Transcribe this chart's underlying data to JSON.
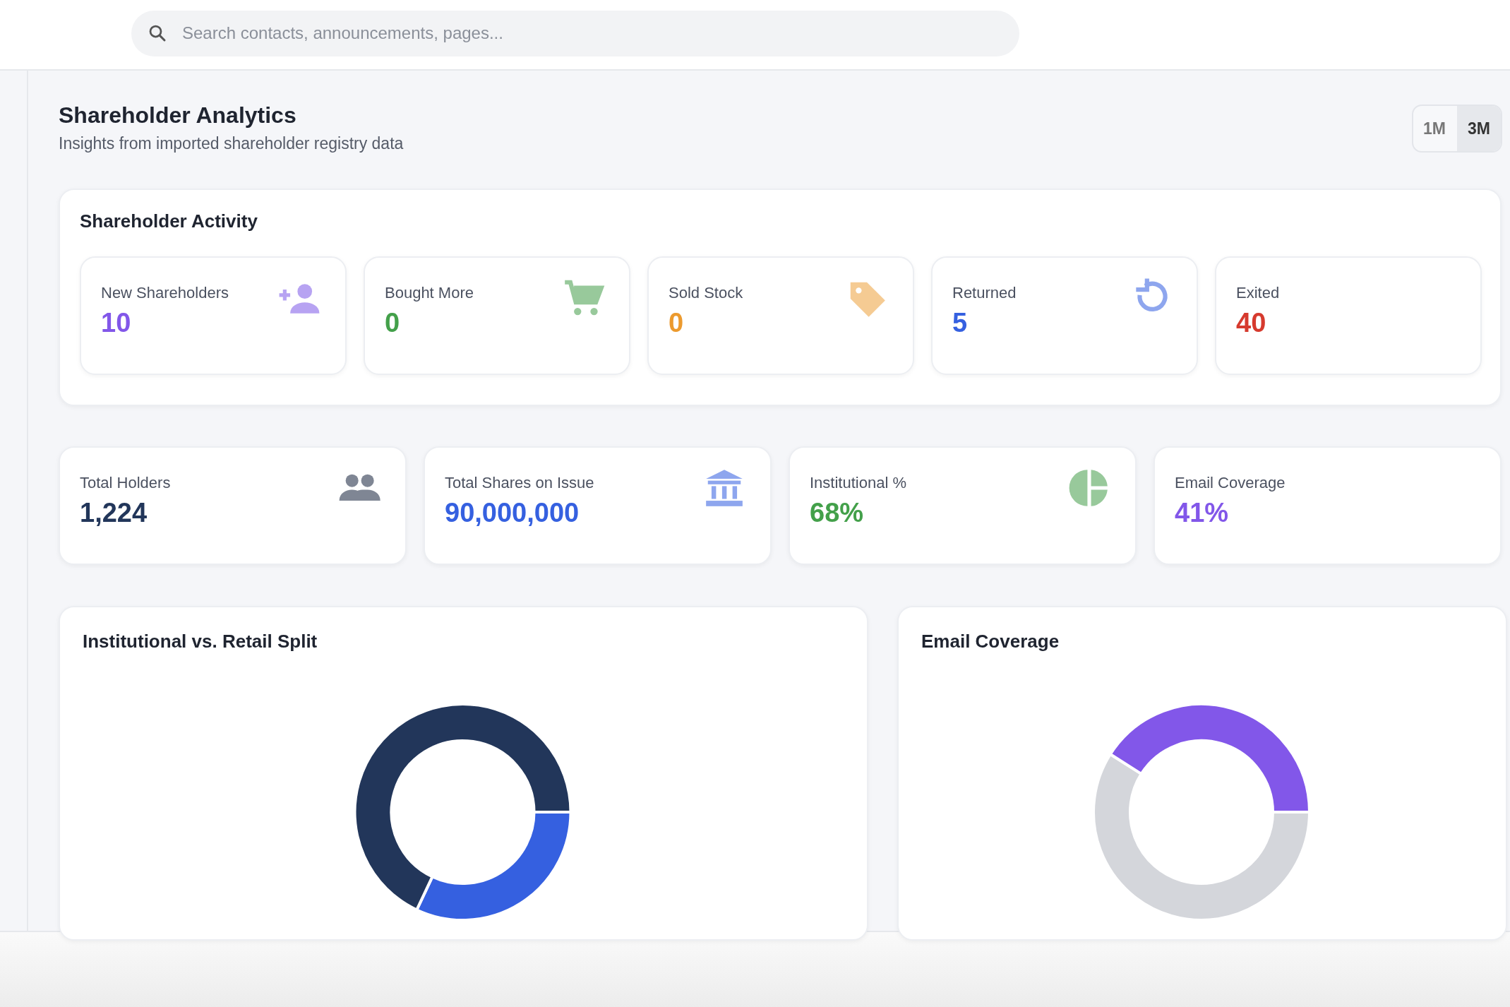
{
  "chart_data": [
    {
      "type": "other",
      "title": "Shareholder Analytics",
      "subtitle": "Insights from imported shareholder registry data",
      "annotations": [
        "Search contacts, announcements, pages...",
        "1M",
        "3M",
        "Shareholder Activity",
        "New Shareholders",
        "10",
        "Bought More",
        "0",
        "Sold Stock",
        "0",
        "Returned",
        "5",
        "Exited",
        "40",
        "Total Holders",
        "1,224",
        "Total Shares on Issue",
        "90,000,000",
        "Institutional %",
        "68%",
        "Email Coverage",
        "41%"
      ]
    },
    {
      "type": "donut",
      "title": "Institutional vs. Retail Split",
      "categories": [
        null,
        null
      ],
      "values": [
        32,
        68
      ],
      "colors": [
        "#3560e0",
        "#22365a"
      ]
    },
    {
      "type": "donut",
      "title": "Email Coverage",
      "categories": [
        null,
        null
      ],
      "values": [
        59,
        41
      ],
      "colors": [
        "#d4d6db",
        "#8257e9"
      ]
    }
  ]
}
